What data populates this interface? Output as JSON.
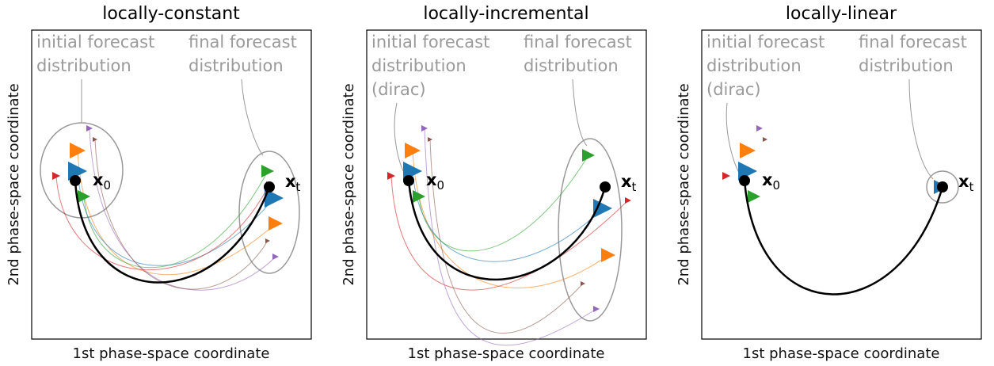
{
  "panels": [
    {
      "title": "locally-constant",
      "xlabel": "1st phase-space coordinate",
      "ylabel": "2nd phase-space coordinate",
      "initial_note": [
        "initial forecast",
        "distribution"
      ],
      "final_note": [
        "final forecast",
        "distribution"
      ],
      "start_label": {
        "symbol": "x",
        "subscript": "0"
      },
      "end_label": {
        "symbol": "x",
        "subscript": "t"
      }
    },
    {
      "title": "locally-incremental",
      "xlabel": "1st phase-space coordinate",
      "ylabel": "2nd phase-space coordinate",
      "initial_note": [
        "initial forecast",
        "distribution",
        "(dirac)"
      ],
      "final_note": [
        "final forecast",
        "distribution"
      ],
      "start_label": {
        "symbol": "x",
        "subscript": "0"
      },
      "end_label": {
        "symbol": "x",
        "subscript": "t"
      }
    },
    {
      "title": "locally-linear",
      "xlabel": "1st phase-space coordinate",
      "ylabel": "2nd phase-space coordinate",
      "initial_note": [
        "initial forecast",
        "distribution",
        "(dirac)"
      ],
      "final_note": [
        "final forecast",
        "distribution"
      ],
      "start_label": {
        "symbol": "x",
        "subscript": "0"
      },
      "end_label": {
        "symbol": "x",
        "subscript": "t"
      }
    }
  ]
}
